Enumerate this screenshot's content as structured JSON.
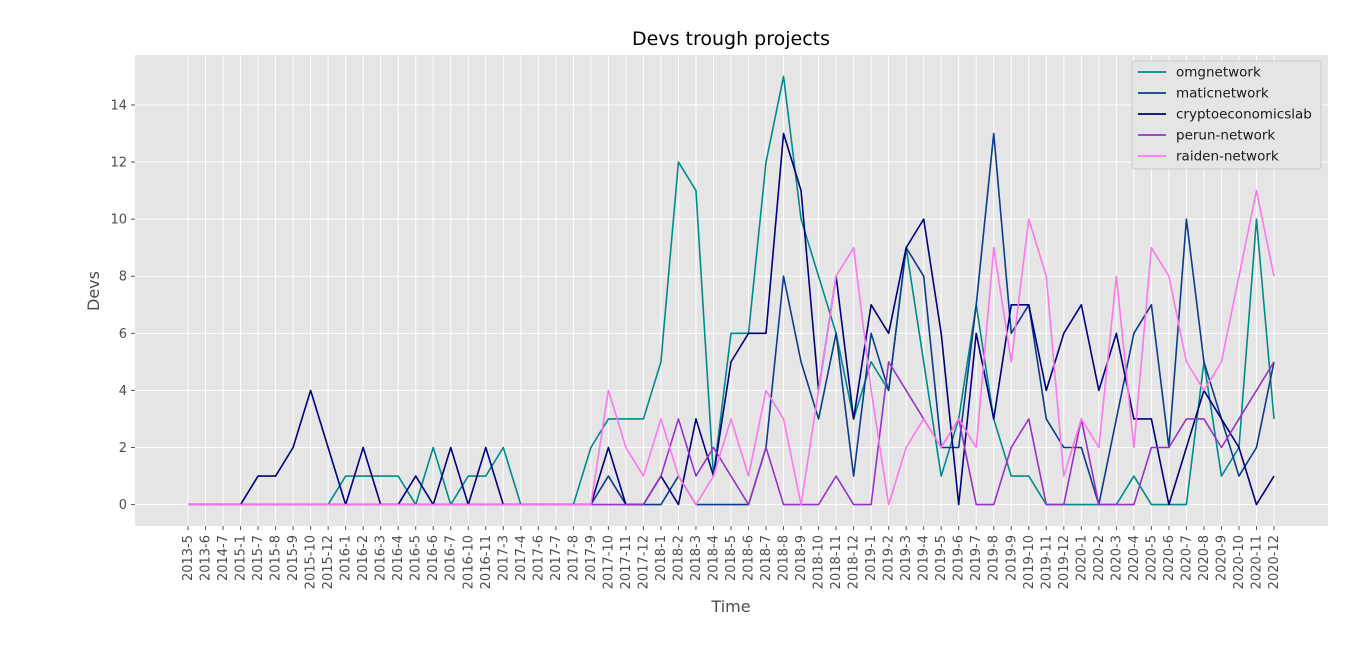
{
  "chart_data": {
    "type": "line",
    "title": "Devs trough projects",
    "xlabel": "Time",
    "ylabel": "Devs",
    "ylim": [
      -0.75,
      15.75
    ],
    "yticks": [
      0,
      2,
      4,
      6,
      8,
      10,
      12,
      14
    ],
    "grid": true,
    "legend_position": "top-right",
    "categories": [
      "2013-5",
      "2013-6",
      "2014-7",
      "2015-1",
      "2015-7",
      "2015-8",
      "2015-9",
      "2015-10",
      "2015-12",
      "2016-1",
      "2016-2",
      "2016-3",
      "2016-4",
      "2016-5",
      "2016-6",
      "2016-7",
      "2016-10",
      "2016-11",
      "2017-3",
      "2017-4",
      "2017-6",
      "2017-7",
      "2017-8",
      "2017-9",
      "2017-10",
      "2017-11",
      "2017-12",
      "2018-1",
      "2018-2",
      "2018-3",
      "2018-4",
      "2018-5",
      "2018-6",
      "2018-7",
      "2018-8",
      "2018-9",
      "2018-10",
      "2018-11",
      "2018-12",
      "2019-1",
      "2019-2",
      "2019-3",
      "2019-4",
      "2019-5",
      "2019-6",
      "2019-7",
      "2019-8",
      "2019-9",
      "2019-10",
      "2019-11",
      "2019-12",
      "2020-1",
      "2020-2",
      "2020-3",
      "2020-4",
      "2020-5",
      "2020-6",
      "2020-7",
      "2020-8",
      "2020-9",
      "2020-10",
      "2020-11",
      "2020-12"
    ],
    "series": [
      {
        "name": "omgnetwork",
        "color": "#008b8b",
        "values": [
          0,
          0,
          0,
          0,
          0,
          0,
          0,
          0,
          0,
          1,
          1,
          1,
          1,
          0,
          2,
          0,
          1,
          1,
          2,
          0,
          0,
          0,
          0,
          2,
          3,
          3,
          3,
          5,
          12,
          11,
          1,
          6,
          6,
          12,
          15,
          10,
          8,
          6,
          3,
          5,
          4,
          9,
          5,
          1,
          3,
          7,
          3,
          1,
          1,
          0,
          0,
          0,
          0,
          0,
          1,
          0,
          0,
          0,
          5,
          1,
          2,
          10,
          3
        ]
      },
      {
        "name": "maticnetwork",
        "color": "#0d3b8e",
        "values": [
          0,
          0,
          0,
          0,
          0,
          0,
          0,
          0,
          0,
          0,
          0,
          0,
          0,
          0,
          0,
          0,
          0,
          0,
          0,
          0,
          0,
          0,
          0,
          0,
          1,
          0,
          0,
          0,
          1,
          0,
          0,
          0,
          0,
          2,
          8,
          5,
          3,
          6,
          1,
          6,
          4,
          9,
          8,
          2,
          2,
          7,
          13,
          6,
          7,
          3,
          2,
          2,
          0,
          3,
          6,
          7,
          2,
          10,
          5,
          3,
          1,
          2,
          5
        ]
      },
      {
        "name": "cryptoeconomicslab",
        "color": "#000080",
        "values": [
          0,
          0,
          0,
          0,
          1,
          1,
          2,
          4,
          2,
          0,
          2,
          0,
          0,
          1,
          0,
          2,
          0,
          2,
          0,
          0,
          0,
          0,
          0,
          0,
          2,
          0,
          0,
          1,
          0,
          3,
          1,
          5,
          6,
          6,
          13,
          11,
          4,
          8,
          3,
          7,
          6,
          9,
          10,
          6,
          0,
          6,
          3,
          7,
          7,
          4,
          6,
          7,
          4,
          6,
          3,
          3,
          0,
          2,
          4,
          3,
          2,
          0,
          1
        ]
      },
      {
        "name": "perun-network",
        "color": "#9932cc",
        "values": [
          0,
          0,
          0,
          0,
          0,
          0,
          0,
          0,
          0,
          0,
          0,
          0,
          0,
          0,
          0,
          0,
          0,
          0,
          0,
          0,
          0,
          0,
          0,
          0,
          0,
          0,
          0,
          1,
          3,
          1,
          2,
          1,
          0,
          2,
          0,
          0,
          0,
          1,
          0,
          0,
          5,
          4,
          3,
          2,
          3,
          0,
          0,
          2,
          3,
          0,
          0,
          3,
          0,
          0,
          0,
          2,
          2,
          3,
          3,
          2,
          3,
          4,
          5
        ]
      },
      {
        "name": "raiden-network",
        "color": "#ff77ee",
        "values": [
          0,
          0,
          0,
          0,
          0,
          0,
          0,
          0,
          0,
          0,
          0,
          0,
          0,
          0,
          0,
          0,
          0,
          0,
          0,
          0,
          0,
          0,
          0,
          0,
          4,
          2,
          1,
          3,
          1,
          0,
          1,
          3,
          1,
          4,
          3,
          0,
          4,
          8,
          9,
          4,
          0,
          2,
          3,
          2,
          3,
          2,
          9,
          5,
          10,
          8,
          1,
          3,
          2,
          8,
          2,
          9,
          8,
          5,
          4,
          5,
          8,
          11,
          8
        ]
      }
    ]
  }
}
